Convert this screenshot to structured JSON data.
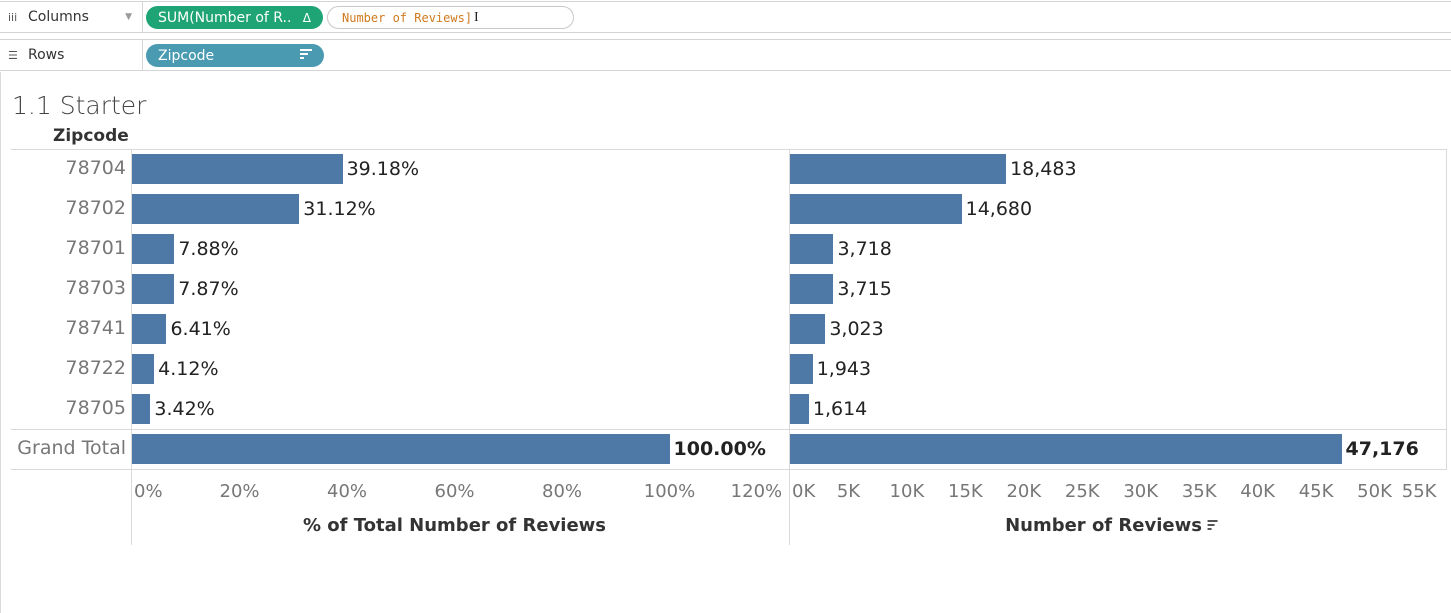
{
  "shelves": {
    "columns": {
      "label": "Columns",
      "pill_measure": "SUM(Number of R..",
      "pill_delta": "Δ",
      "pill_edit_text": "Number of Reviews]"
    },
    "rows": {
      "label": "Rows",
      "pill_dimension": "Zipcode"
    }
  },
  "sheet": {
    "title": "1.1 Starter",
    "row_header": "Zipcode"
  },
  "colors": {
    "bar": "#4e79a7",
    "pill_measure": "#1fa575",
    "pill_dimension": "#4a9bb2",
    "edit_text": "#d07a1e"
  },
  "chart_data": [
    {
      "type": "bar",
      "orientation": "horizontal",
      "categories": [
        "78704",
        "78702",
        "78701",
        "78703",
        "78741",
        "78722",
        "78705",
        "Grand Total"
      ],
      "values": [
        39.18,
        31.12,
        7.88,
        7.87,
        6.41,
        4.12,
        3.42,
        100.0
      ],
      "labels": [
        "39.18%",
        "31.12%",
        "7.88%",
        "7.87%",
        "6.41%",
        "4.12%",
        "3.42%",
        "100.00%"
      ],
      "xlabel": "% of Total Number of Reviews",
      "xlim": [
        0,
        120
      ],
      "ticks": [
        "0%",
        "20%",
        "40%",
        "60%",
        "80%",
        "100%",
        "120%"
      ]
    },
    {
      "type": "bar",
      "orientation": "horizontal",
      "categories": [
        "78704",
        "78702",
        "78701",
        "78703",
        "78741",
        "78722",
        "78705",
        "Grand Total"
      ],
      "values": [
        18483,
        14680,
        3718,
        3715,
        3023,
        1943,
        1614,
        47176
      ],
      "labels": [
        "18,483",
        "14,680",
        "3,718",
        "3,715",
        "3,023",
        "1,943",
        "1,614",
        "47,176"
      ],
      "xlabel": "Number of Reviews",
      "xlim": [
        0,
        55000
      ],
      "ticks": [
        "0K",
        "5K",
        "10K",
        "15K",
        "20K",
        "25K",
        "30K",
        "35K",
        "40K",
        "45K",
        "50K",
        "55K"
      ]
    }
  ]
}
